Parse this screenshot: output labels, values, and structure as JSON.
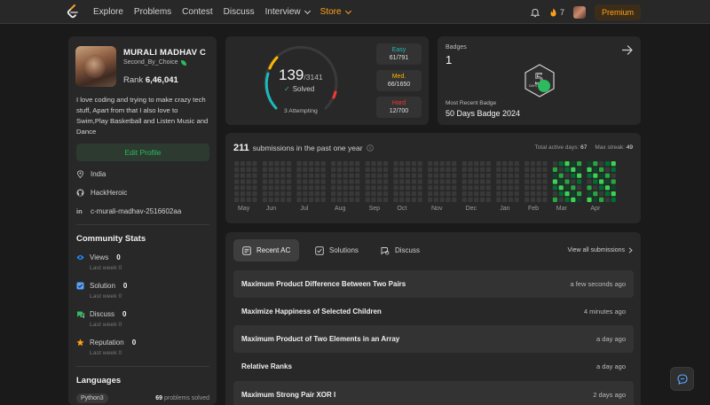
{
  "nav": {
    "links": [
      "Explore",
      "Problems",
      "Contest",
      "Discuss",
      "Interview",
      "Store"
    ],
    "streak": "7",
    "premium": "Premium"
  },
  "profile": {
    "name": "MURALI MADHAV C",
    "handle": "Second_By_Choice",
    "rank_label": "Rank",
    "rank": "6,46,041",
    "bio": "I love coding and trying to make crazy tech stuff, Apart from that I also love to Swim,Play Basketball and Listen Music and Dance",
    "edit_label": "Edit Profile",
    "location": "India",
    "github": "HackHeroic",
    "linkedin": "c-murali-madhav-2516602aa"
  },
  "community": {
    "title": "Community Stats",
    "last_week": "Last week",
    "items": [
      {
        "label": "Views",
        "value": "0",
        "delta": "0",
        "color": "#1e8fff"
      },
      {
        "label": "Solution",
        "value": "0",
        "delta": "0",
        "color": "#56a6ff"
      },
      {
        "label": "Discuss",
        "value": "0",
        "delta": "0",
        "color": "#2cbb5d"
      },
      {
        "label": "Reputation",
        "value": "0",
        "delta": "0",
        "color": "#ffa116"
      }
    ]
  },
  "languages": {
    "title": "Languages",
    "items": [
      {
        "name": "Python3",
        "count": "69",
        "suffix": "problems solved"
      }
    ]
  },
  "solved": {
    "count": "139",
    "total": "/3141",
    "label": "Solved",
    "attempting": "3 Attempting",
    "solved_fraction": 0.044,
    "difficulties": [
      {
        "label": "Easy",
        "value": "61/791",
        "color": "#1cbaba"
      },
      {
        "label": "Med.",
        "value": "66/1650",
        "color": "#ffb700"
      },
      {
        "label": "Hard",
        "value": "12/700",
        "color": "#f63737"
      }
    ]
  },
  "badges": {
    "label": "Badges",
    "count": "1",
    "badge_text": "DAYS",
    "recent_label": "Most Recent Badge",
    "recent": "50 Days Badge 2024"
  },
  "heatmap": {
    "count": "211",
    "label": "submissions in the past one year",
    "active_label": "Total active days:",
    "active_days": "67",
    "streak_label": "Max streak:",
    "max_streak": "49",
    "months": [
      "May",
      "Jun",
      "Jul",
      "Aug",
      "Sep",
      "Oct",
      "Nov",
      "Dec",
      "Jan",
      "Feb",
      "Mar",
      "Apr"
    ],
    "colors": {
      "empty": "#393939",
      "l1": "#0e4429",
      "l2": "#006d32",
      "l3": "#26a641",
      "l4": "#39d353"
    }
  },
  "recent": {
    "tabs": [
      "Recent AC",
      "Solutions",
      "Discuss"
    ],
    "view_all": "View all submissions",
    "items": [
      {
        "title": "Maximum Product Difference Between Two Pairs",
        "when": "a few seconds ago"
      },
      {
        "title": "Maximize Happiness of Selected Children",
        "when": "4 minutes ago"
      },
      {
        "title": "Maximum Product of Two Elements in an Array",
        "when": "a day ago"
      },
      {
        "title": "Relative Ranks",
        "when": "a day ago"
      },
      {
        "title": "Maximum Strong Pair XOR I",
        "when": "2 days ago"
      }
    ]
  }
}
